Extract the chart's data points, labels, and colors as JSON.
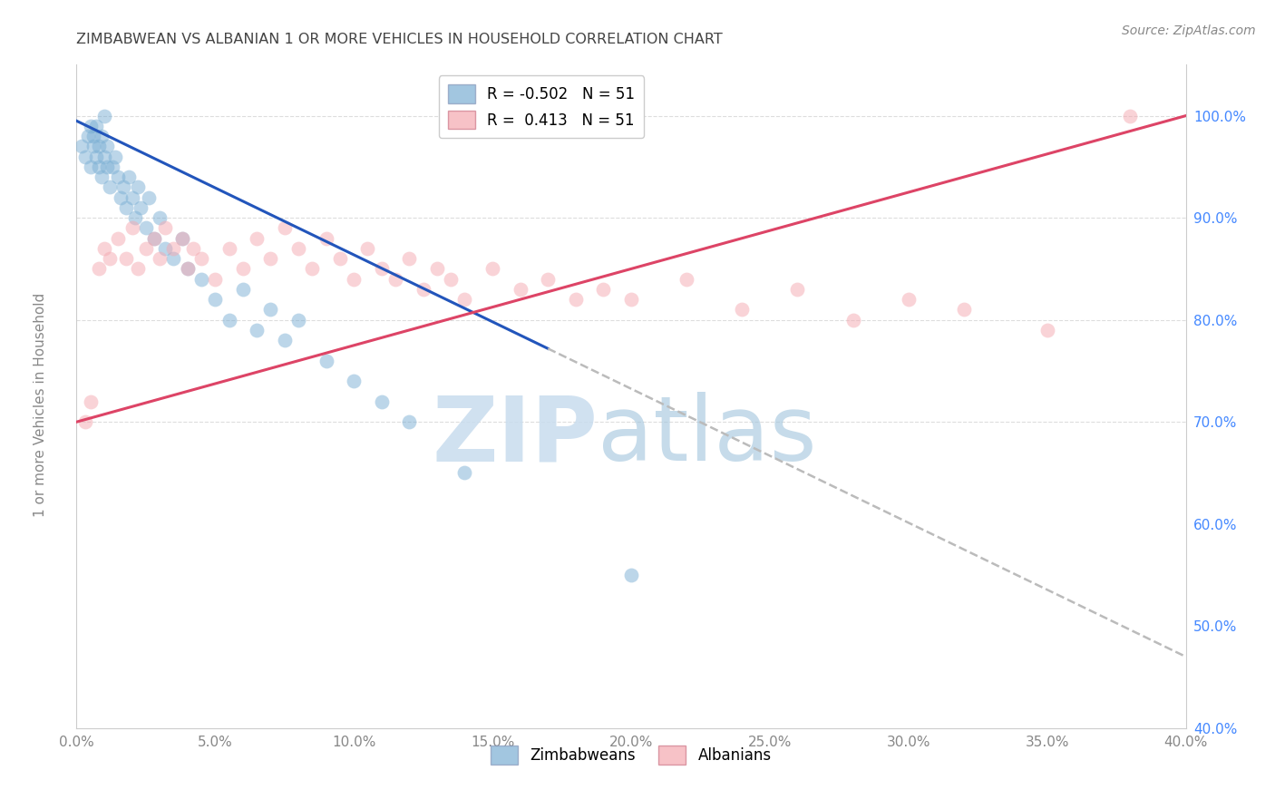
{
  "title": "ZIMBABWEAN VS ALBANIAN 1 OR MORE VEHICLES IN HOUSEHOLD CORRELATION CHART",
  "source": "Source: ZipAtlas.com",
  "ylabel": "1 or more Vehicles in Household",
  "r_zimbabwean": -0.502,
  "r_albanian": 0.413,
  "n": 51,
  "xmin": 0.0,
  "xmax": 40.0,
  "ymin": 40.0,
  "ymax": 105.0,
  "watermark_zip": "ZIP",
  "watermark_atlas": "atlas",
  "legend_zimbabweans": "Zimbabweans",
  "legend_albanians": "Albanians",
  "blue_color": "#7BAFD4",
  "pink_color": "#F4A8B0",
  "trend_blue": "#2255BB",
  "trend_pink": "#DD4466",
  "title_color": "#444444",
  "tick_color_x": "#888888",
  "tick_color_y": "#4488FF",
  "ylabel_color": "#888888",
  "grid_color": "#DDDDDD",
  "source_color": "#888888",
  "zim_x": [
    0.2,
    0.3,
    0.4,
    0.5,
    0.5,
    0.6,
    0.6,
    0.7,
    0.7,
    0.8,
    0.8,
    0.9,
    0.9,
    1.0,
    1.0,
    1.1,
    1.1,
    1.2,
    1.3,
    1.4,
    1.5,
    1.6,
    1.7,
    1.8,
    1.9,
    2.0,
    2.1,
    2.2,
    2.3,
    2.5,
    2.6,
    2.8,
    3.0,
    3.2,
    3.5,
    3.8,
    4.0,
    4.5,
    5.0,
    5.5,
    6.0,
    6.5,
    7.0,
    7.5,
    8.0,
    9.0,
    10.0,
    11.0,
    12.0,
    14.0,
    20.0
  ],
  "zim_y": [
    97,
    96,
    98,
    99,
    95,
    97,
    98,
    96,
    99,
    95,
    97,
    94,
    98,
    96,
    100,
    95,
    97,
    93,
    95,
    96,
    94,
    92,
    93,
    91,
    94,
    92,
    90,
    93,
    91,
    89,
    92,
    88,
    90,
    87,
    86,
    88,
    85,
    84,
    82,
    80,
    83,
    79,
    81,
    78,
    80,
    76,
    74,
    72,
    70,
    65,
    55
  ],
  "alb_x": [
    0.3,
    0.5,
    0.8,
    1.0,
    1.2,
    1.5,
    1.8,
    2.0,
    2.2,
    2.5,
    2.8,
    3.0,
    3.2,
    3.5,
    3.8,
    4.0,
    4.2,
    4.5,
    5.0,
    5.5,
    6.0,
    6.5,
    7.0,
    7.5,
    8.0,
    8.5,
    9.0,
    9.5,
    10.0,
    10.5,
    11.0,
    11.5,
    12.0,
    12.5,
    13.0,
    13.5,
    14.0,
    15.0,
    16.0,
    17.0,
    18.0,
    19.0,
    20.0,
    22.0,
    24.0,
    26.0,
    28.0,
    30.0,
    32.0,
    35.0,
    38.0
  ],
  "alb_y": [
    70,
    72,
    85,
    87,
    86,
    88,
    86,
    89,
    85,
    87,
    88,
    86,
    89,
    87,
    88,
    85,
    87,
    86,
    84,
    87,
    85,
    88,
    86,
    89,
    87,
    85,
    88,
    86,
    84,
    87,
    85,
    84,
    86,
    83,
    85,
    84,
    82,
    85,
    83,
    84,
    82,
    83,
    82,
    84,
    81,
    83,
    80,
    82,
    81,
    79,
    100
  ],
  "zim_trend_x0": 0.0,
  "zim_trend_x1": 40.0,
  "zim_trend_y0": 99.5,
  "zim_trend_y1": 47.0,
  "zim_solid_end": 17.0,
  "alb_trend_x0": 0.0,
  "alb_trend_x1": 40.0,
  "alb_trend_y0": 70.0,
  "alb_trend_y1": 100.0
}
